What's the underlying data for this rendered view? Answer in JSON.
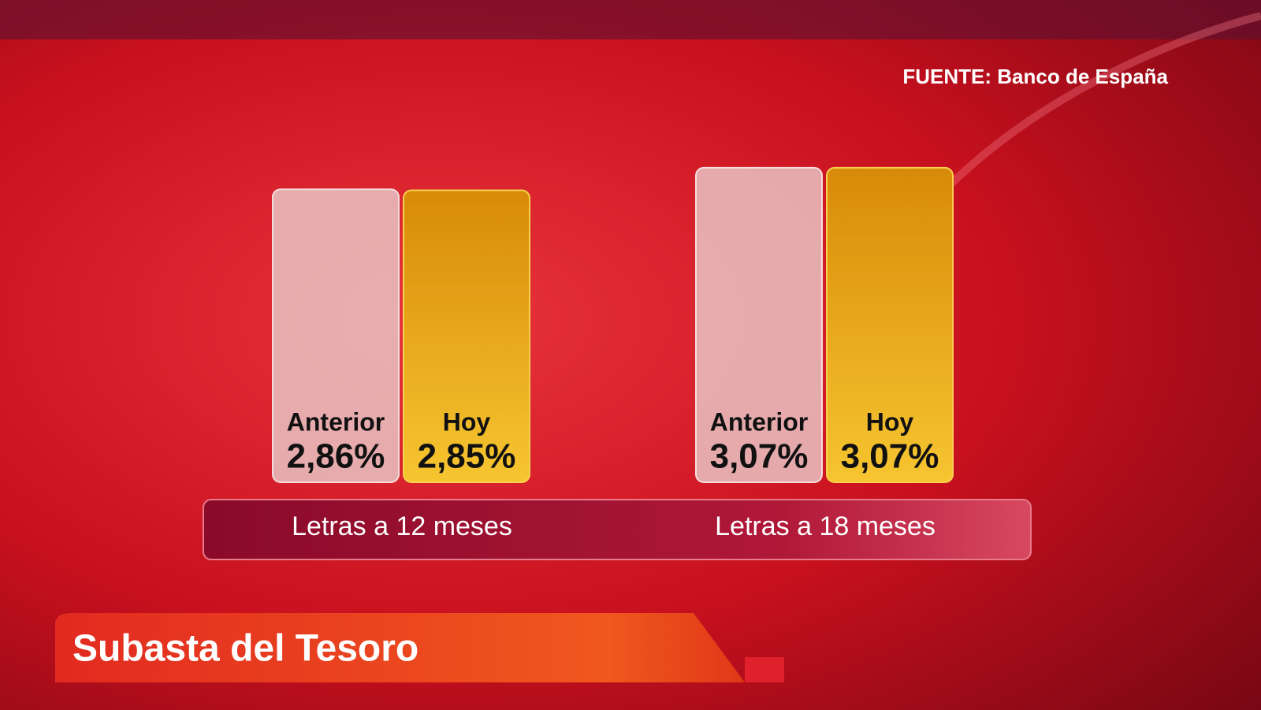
{
  "chart_data": {
    "type": "bar",
    "title": "Subasta del Tesoro",
    "source": "FUENTE: Banco de España",
    "categories": [
      "Letras a 12 meses",
      "Letras a 18 meses"
    ],
    "series": [
      {
        "name": "Anterior",
        "color": "#e9c3c3",
        "values": [
          2.86,
          3.07
        ],
        "value_labels": [
          "2,86%",
          "3,07%"
        ]
      },
      {
        "name": "Hoy",
        "color": "#e7a51c",
        "values": [
          2.85,
          3.07
        ],
        "value_labels": [
          "2,85%",
          "3,07%"
        ]
      }
    ]
  }
}
